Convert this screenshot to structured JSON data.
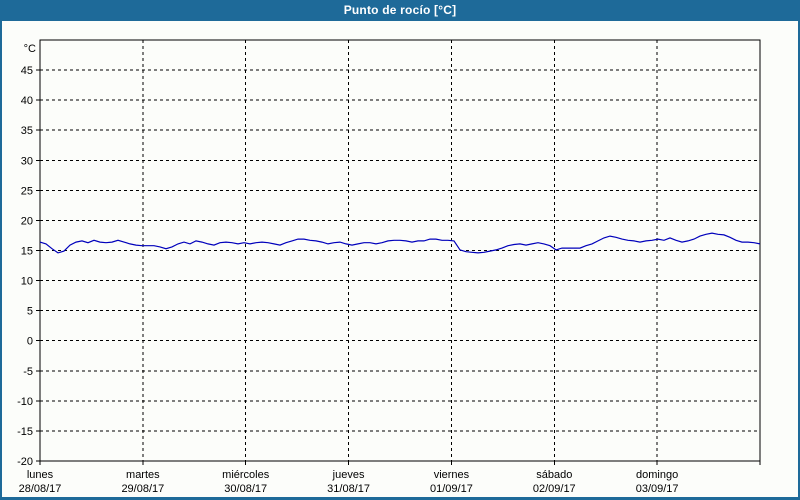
{
  "window": {
    "title": "Punto de rocío [°C]",
    "titlebar_color": "#1e6a99",
    "border_color": "#1e6a99",
    "background_color": "#fcfdfa"
  },
  "chart_data": {
    "type": "line",
    "title": "Punto de rocío [°C]",
    "grid": {
      "style": "dashed",
      "color": "#000000"
    },
    "legend": "none",
    "y_axis": {
      "unit_label": "°C",
      "min": -20,
      "max": 50,
      "tick_step": 5,
      "tick_labels": [
        45,
        40,
        35,
        30,
        25,
        20,
        15,
        10,
        5,
        0,
        -5,
        -10,
        -15,
        -20
      ]
    },
    "x_axis": {
      "days": [
        {
          "name": "lunes",
          "date": "28/08/17"
        },
        {
          "name": "martes",
          "date": "29/08/17"
        },
        {
          "name": "miércoles",
          "date": "30/08/17"
        },
        {
          "name": "jueves",
          "date": "31/08/17"
        },
        {
          "name": "viernes",
          "date": "01/09/17"
        },
        {
          "name": "sábado",
          "date": "02/09/17"
        },
        {
          "name": "domingo",
          "date": "03/09/17"
        }
      ]
    },
    "series": [
      {
        "name": "Punto de rocío",
        "unit": "°C",
        "color": "#0000bb",
        "values": [
          16.4,
          16.1,
          15.3,
          14.6,
          14.9,
          15.9,
          16.4,
          16.6,
          16.3,
          16.7,
          16.4,
          16.3,
          16.4,
          16.7,
          16.4,
          16.1,
          15.9,
          15.8,
          15.8,
          15.8,
          15.6,
          15.3,
          15.6,
          16.1,
          16.4,
          16.1,
          16.6,
          16.4,
          16.1,
          15.9,
          16.3,
          16.4,
          16.3,
          16.1,
          16.3,
          16.1,
          16.3,
          16.4,
          16.3,
          16.1,
          15.9,
          16.3,
          16.6,
          16.9,
          16.9,
          16.7,
          16.6,
          16.4,
          16.1,
          16.3,
          16.4,
          16.1,
          15.9,
          16.1,
          16.3,
          16.3,
          16.1,
          16.3,
          16.6,
          16.7,
          16.7,
          16.6,
          16.4,
          16.6,
          16.6,
          16.9,
          16.9,
          16.7,
          16.7,
          16.6,
          15.1,
          14.8,
          14.7,
          14.6,
          14.7,
          14.9,
          15.1,
          15.4,
          15.8,
          16.0,
          16.1,
          15.9,
          16.1,
          16.3,
          16.1,
          15.8,
          15.1,
          15.4,
          15.4,
          15.4,
          15.4,
          15.8,
          16.1,
          16.6,
          17.1,
          17.4,
          17.2,
          16.9,
          16.7,
          16.6,
          16.4,
          16.6,
          16.7,
          16.9,
          16.7,
          17.1,
          16.7,
          16.4,
          16.6,
          16.9,
          17.4,
          17.7,
          17.9,
          17.7,
          17.6,
          17.2,
          16.7,
          16.4,
          16.4,
          16.3,
          16.1
        ]
      }
    ]
  }
}
